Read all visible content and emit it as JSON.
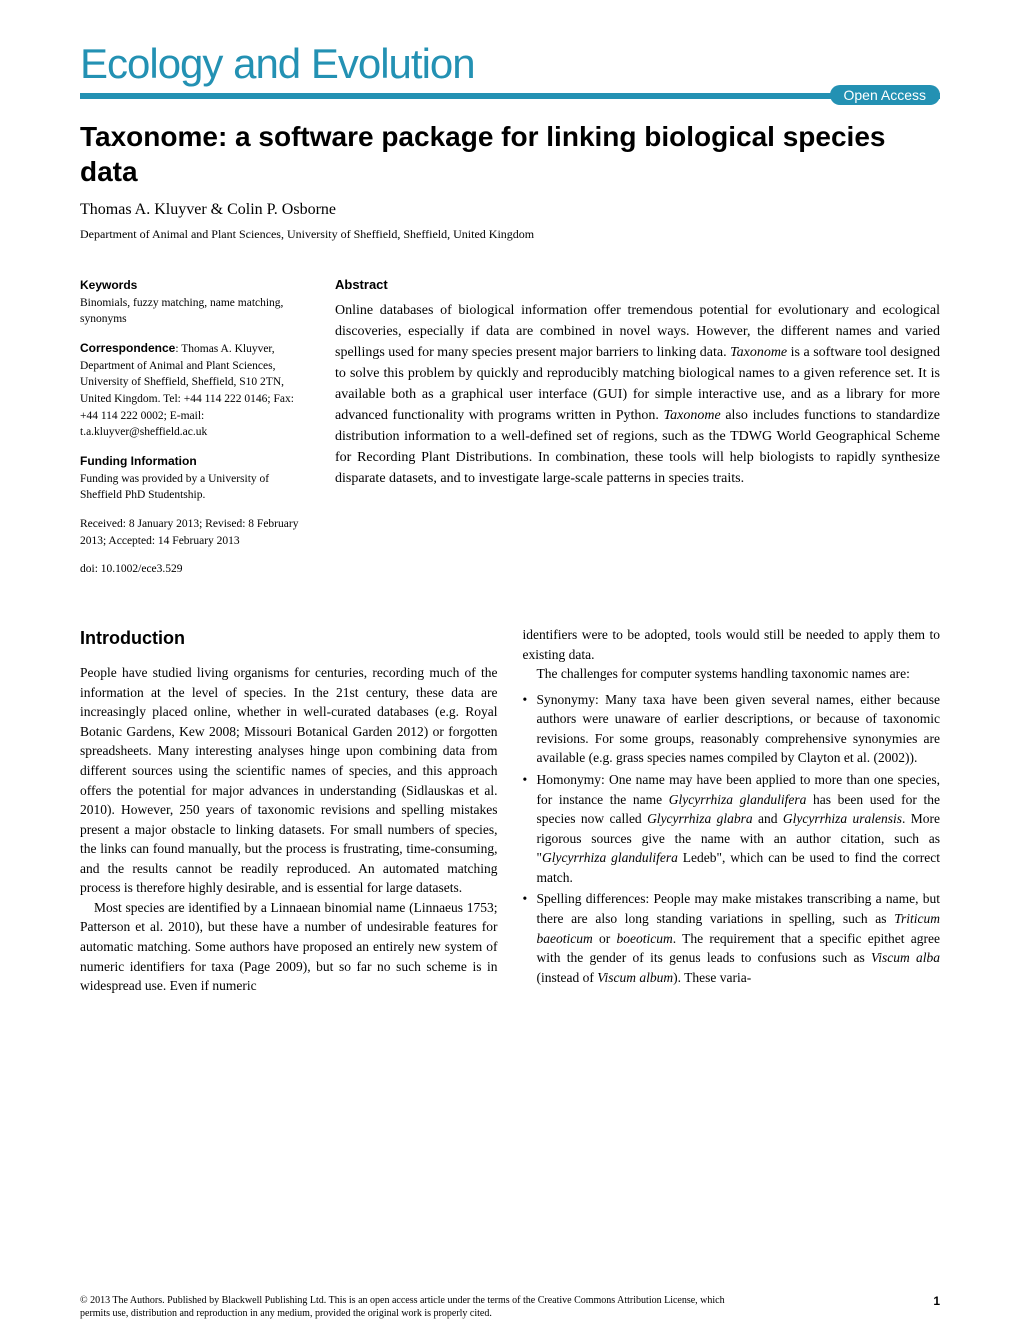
{
  "journal": {
    "name": "Ecology and Evolution",
    "open_access_label": "Open Access",
    "brand_color": "#2391b3"
  },
  "article": {
    "title": "Taxonome: a software package for linking biological species data",
    "authors": "Thomas A. Kluyver & Colin P. Osborne",
    "affiliation": "Department of Animal and Plant Sciences, University of Sheffield, Sheffield, United Kingdom"
  },
  "metadata": {
    "keywords_label": "Keywords",
    "keywords": "Binomials, fuzzy matching, name matching, synonyms",
    "correspondence_label": "Correspondence",
    "correspondence": ": Thomas A. Kluyver, Department of Animal and Plant Sciences, University of Sheffield, Sheffield, S10 2TN, United Kingdom. Tel: +44 114 222 0146; Fax: +44 114 222 0002; E-mail: t.a.kluyver@sheffield.ac.uk",
    "funding_label": "Funding Information",
    "funding": "Funding was provided by a University of Sheffield PhD Studentship.",
    "dates": "Received: 8 January 2013; Revised: 8 February 2013; Accepted: 14 February 2013",
    "doi": "doi: 10.1002/ece3.529"
  },
  "abstract": {
    "label": "Abstract",
    "text": "Online databases of biological information offer tremendous potential for evolutionary and ecological discoveries, especially if data are combined in novel ways. However, the different names and varied spellings used for many species present major barriers to linking data. Taxonome is a software tool designed to solve this problem by quickly and reproducibly matching biological names to a given reference set. It is available both as a graphical user interface (GUI) for simple interactive use, and as a library for more advanced functionality with programs written in Python. Taxonome also includes functions to standardize distribution information to a well-defined set of regions, such as the TDWG World Geographical Scheme for Recording Plant Distributions. In combination, these tools will help biologists to rapidly synthesize disparate datasets, and to investigate large-scale patterns in species traits."
  },
  "introduction": {
    "heading": "Introduction",
    "para1": "People have studied living organisms for centuries, recording much of the information at the level of species. In the 21st century, these data are increasingly placed online, whether in well-curated databases (e.g. Royal Botanic Gardens, Kew 2008; Missouri Botanical Garden 2012) or forgotten spreadsheets. Many interesting analyses hinge upon combining data from different sources using the scientific names of species, and this approach offers the potential for major advances in understanding (Sidlauskas et al. 2010). However, 250 years of taxonomic revisions and spelling mistakes present a major obstacle to linking datasets. For small numbers of species, the links can found manually, but the process is frustrating, time-consuming, and the results cannot be readily reproduced. An automated matching process is therefore highly desirable, and is essential for large datasets.",
    "para2": "Most species are identified by a Linnaean binomial name (Linnaeus 1753; Patterson et al. 2010), but these have a number of undesirable features for automatic matching. Some authors have proposed an entirely new system of numeric identifiers for taxa (Page 2009), but so far no such scheme is in widespread use. Even if numeric",
    "para3": "identifiers were to be adopted, tools would still be needed to apply them to existing data.",
    "para4": "The challenges for computer systems handling taxonomic names are:",
    "bullets": [
      "Synonymy: Many taxa have been given several names, either because authors were unaware of earlier descriptions, or because of taxonomic revisions. For some groups, reasonably comprehensive synonymies are available (e.g. grass species names compiled by Clayton et al. (2002)).",
      "Homonymy: One name may have been applied to more than one species, for instance the name Glycyrrhiza glandulifera has been used for the species now called Glycyrrhiza glabra and Glycyrrhiza uralensis. More rigorous sources give the name with an author citation, such as \"Glycyrrhiza glandulifera Ledeb\", which can be used to find the correct match.",
      "Spelling differences: People may make mistakes transcribing a name, but there are also long standing variations in spelling, such as Triticum baeoticum or boeoticum. The requirement that a specific epithet agree with the gender of its genus leads to confusions such as Viscum alba (instead of Viscum album). These varia-"
    ]
  },
  "footer": {
    "copyright": "© 2013 The Authors. Published by Blackwell Publishing Ltd. This is an open access article under the terms of the Creative Commons Attribution License, which permits use, distribution and reproduction in any medium, provided the original work is properly cited.",
    "page_number": "1"
  }
}
